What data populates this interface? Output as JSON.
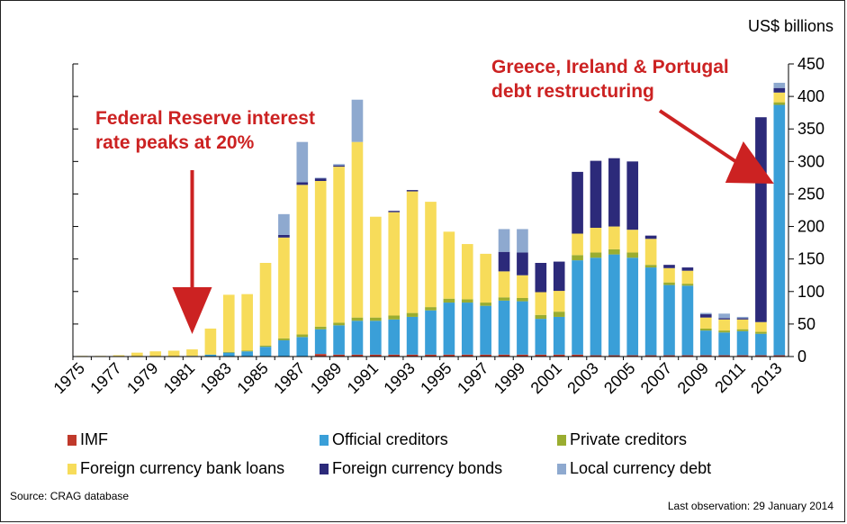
{
  "chart_data": {
    "type": "bar",
    "stacked": true,
    "unit_label": "US$ billions",
    "y_axis_position": "right",
    "ylim": [
      0,
      450
    ],
    "yticks": [
      0,
      50,
      100,
      150,
      200,
      250,
      300,
      350,
      400,
      450
    ],
    "x": [
      1975,
      1976,
      1977,
      1978,
      1979,
      1980,
      1981,
      1982,
      1983,
      1984,
      1985,
      1986,
      1987,
      1988,
      1989,
      1990,
      1991,
      1992,
      1993,
      1994,
      1995,
      1996,
      1997,
      1998,
      1999,
      2000,
      2001,
      2002,
      2003,
      2004,
      2005,
      2006,
      2007,
      2008,
      2009,
      2010,
      2011,
      2012,
      2013
    ],
    "xtick_labels": [
      "1975",
      "1977",
      "1979",
      "1981",
      "1983",
      "1985",
      "1987",
      "1989",
      "1991",
      "1993",
      "1995",
      "1997",
      "1999",
      "2001",
      "2003",
      "2005",
      "2007",
      "2009",
      "2011",
      "2013"
    ],
    "series": [
      {
        "name": "IMF",
        "color": "#c0392b",
        "values": [
          0,
          0,
          0,
          0,
          0,
          0,
          0,
          0,
          0,
          0,
          0,
          0,
          0,
          4,
          3,
          3,
          3,
          3,
          3,
          3,
          3,
          3,
          3,
          3,
          3,
          3,
          3,
          3,
          2,
          2,
          2,
          2,
          2,
          2,
          2,
          2,
          2,
          2,
          2
        ]
      },
      {
        "name": "Official creditors",
        "color": "#3a9fd8",
        "values": [
          0,
          0,
          0,
          0,
          0,
          0,
          1,
          3,
          6,
          8,
          15,
          25,
          30,
          38,
          45,
          52,
          52,
          54,
          58,
          68,
          80,
          80,
          75,
          83,
          82,
          55,
          58,
          145,
          150,
          155,
          150,
          135,
          108,
          107,
          38,
          35,
          37,
          33,
          385
        ]
      },
      {
        "name": "Private creditors",
        "color": "#9aad30",
        "values": [
          0,
          0,
          0,
          0,
          0,
          0,
          0,
          0,
          1,
          1,
          2,
          3,
          4,
          4,
          4,
          5,
          5,
          6,
          6,
          5,
          6,
          5,
          5,
          5,
          5,
          6,
          8,
          8,
          8,
          8,
          8,
          4,
          4,
          3,
          3,
          3,
          3,
          3,
          4
        ]
      },
      {
        "name": "Foreign currency bank loans",
        "color": "#f7dc5a",
        "values": [
          1,
          1,
          2,
          6,
          8,
          9,
          10,
          40,
          88,
          87,
          127,
          155,
          230,
          224,
          240,
          270,
          155,
          159,
          187,
          162,
          103,
          85,
          75,
          40,
          35,
          35,
          32,
          33,
          38,
          35,
          35,
          40,
          22,
          20,
          17,
          17,
          15,
          15,
          15
        ]
      },
      {
        "name": "Foreign currency bonds",
        "color": "#2c2a7a",
        "values": [
          0,
          0,
          0,
          0,
          0,
          0,
          0,
          0,
          0,
          0,
          0,
          4,
          4,
          4,
          2,
          0,
          0,
          2,
          2,
          0,
          0,
          0,
          0,
          30,
          35,
          45,
          45,
          95,
          103,
          105,
          105,
          5,
          5,
          5,
          5,
          2,
          2,
          315,
          7
        ]
      },
      {
        "name": "Local currency debt",
        "color": "#8ea9cf",
        "values": [
          0,
          0,
          0,
          0,
          0,
          0,
          0,
          0,
          0,
          0,
          0,
          32,
          62,
          1,
          2,
          65,
          0,
          0,
          0,
          0,
          0,
          0,
          0,
          35,
          36,
          0,
          0,
          0,
          0,
          0,
          0,
          0,
          0,
          0,
          2,
          7,
          2,
          0,
          8
        ]
      }
    ],
    "annotations": [
      {
        "text": "Federal Reserve interest rate peaks at 20%",
        "year": 1981
      },
      {
        "text": "Greece, Ireland & Portugal debt restructuring",
        "year": 2013
      }
    ]
  },
  "ann1": {
    "line1": "Federal Reserve interest",
    "line2": "rate peaks at 20%"
  },
  "ann2": {
    "line1": "Greece, Ireland & Portugal",
    "line2": "debt restructuring"
  },
  "footer": {
    "source": "Source: CRAG database",
    "last_observation": "Last observation: 29 January 2014"
  },
  "colors": {
    "annotation_red": "#cc2222",
    "axis": "#000000"
  }
}
